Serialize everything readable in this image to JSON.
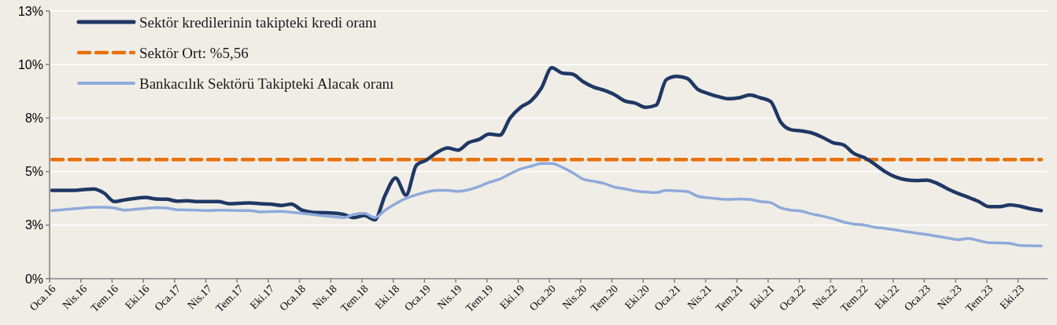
{
  "chart_data": {
    "type": "line",
    "categories": [
      "Oca.16",
      null,
      null,
      "Nis.16",
      null,
      null,
      "Tem.16",
      null,
      null,
      "Eki.16",
      null,
      null,
      "Oca.17",
      null,
      null,
      "Nis.17",
      null,
      null,
      "Tem.17",
      null,
      null,
      "Eki.17",
      null,
      null,
      "Oca.18",
      null,
      null,
      "Nis.18",
      null,
      null,
      "Tem.18",
      null,
      null,
      "Eki.18",
      null,
      null,
      "Oca.19",
      null,
      null,
      "Nis.19",
      null,
      null,
      "Tem.19",
      null,
      null,
      "Eki.19",
      null,
      null,
      "Oca.20",
      null,
      null,
      "Nis.20",
      null,
      null,
      "Tem.20",
      null,
      null,
      "Eki.20",
      null,
      null,
      "Oca.21",
      null,
      null,
      "Nis.21",
      null,
      null,
      "Tem.21",
      null,
      null,
      "Eki.21",
      null,
      null,
      "Oca.22",
      null,
      null,
      "Nis.22",
      null,
      null,
      "Tem.22",
      null,
      null,
      "Eki.22",
      null,
      null,
      "Oca.23",
      null,
      null,
      "Nis.23",
      null,
      null,
      "Tem.23",
      null,
      null,
      "Eki.23",
      null,
      null
    ],
    "series": [
      {
        "name": "Sektör kredilerinin takipteki kredi oranı",
        "color": "#1f3864",
        "values": [
          4.12,
          4.12,
          4.12,
          4.16,
          4.19,
          4.0,
          3.6,
          3.68,
          3.75,
          3.79,
          3.72,
          3.71,
          3.62,
          3.64,
          3.6,
          3.6,
          3.6,
          3.5,
          3.52,
          3.54,
          3.5,
          3.48,
          3.42,
          3.48,
          3.2,
          3.1,
          3.08,
          3.06,
          3.0,
          2.85,
          2.95,
          2.75,
          3.9,
          4.7,
          3.9,
          5.3,
          5.55,
          5.9,
          6.1,
          6.0,
          6.35,
          6.5,
          6.75,
          6.7,
          7.5,
          8.0,
          8.3,
          8.9,
          9.85,
          9.6,
          9.55,
          9.2,
          8.95,
          8.8,
          8.6,
          8.3,
          8.2,
          8.0,
          8.1,
          9.3,
          9.45,
          9.35,
          8.85,
          8.65,
          8.5,
          8.4,
          8.45,
          8.58,
          8.45,
          8.28,
          7.3,
          6.95,
          6.9,
          6.8,
          6.6,
          6.35,
          6.25,
          5.85,
          5.65,
          5.35,
          5.0,
          4.75,
          4.62,
          4.58,
          4.6,
          4.45,
          4.2,
          3.98,
          3.8,
          3.6,
          3.36,
          3.36,
          3.45,
          3.38,
          3.26,
          3.18
        ]
      },
      {
        "name": "Bankacılık Sektörü Takipteki Alacak oranı",
        "color": "#8eaadb",
        "values": [
          3.18,
          3.22,
          3.26,
          3.3,
          3.34,
          3.34,
          3.3,
          3.2,
          3.24,
          3.28,
          3.32,
          3.3,
          3.22,
          3.21,
          3.2,
          3.18,
          3.2,
          3.19,
          3.18,
          3.18,
          3.12,
          3.13,
          3.14,
          3.1,
          3.05,
          3.0,
          2.94,
          2.9,
          2.85,
          3.0,
          3.05,
          2.85,
          3.2,
          3.5,
          3.75,
          3.92,
          4.05,
          4.12,
          4.12,
          4.08,
          4.15,
          4.3,
          4.5,
          4.65,
          4.9,
          5.12,
          5.25,
          5.38,
          5.38,
          5.2,
          4.95,
          4.65,
          4.55,
          4.45,
          4.28,
          4.2,
          4.1,
          4.05,
          4.02,
          4.12,
          4.1,
          4.07,
          3.85,
          3.78,
          3.73,
          3.7,
          3.72,
          3.7,
          3.6,
          3.55,
          3.3,
          3.2,
          3.15,
          3.02,
          2.92,
          2.8,
          2.65,
          2.55,
          2.5,
          2.4,
          2.35,
          2.28,
          2.2,
          2.13,
          2.06,
          1.98,
          1.9,
          1.82,
          1.88,
          1.78,
          1.68,
          1.67,
          1.65,
          1.55,
          1.54,
          1.53
        ]
      }
    ],
    "ref_lines": [
      {
        "axis": "y",
        "value": 5.56,
        "label": "Sektör Ort: %5,56",
        "color": "#e8710a",
        "line_style": "dashed"
      }
    ],
    "ylim": [
      0,
      12.5
    ],
    "yticks": [
      {
        "value": 0,
        "label": "0%"
      },
      {
        "value": 2.5,
        "label": "3%"
      },
      {
        "value": 5,
        "label": "5%"
      },
      {
        "value": 7.5,
        "label": "8%"
      },
      {
        "value": 10,
        "label": "10%"
      },
      {
        "value": 12.5,
        "label": "13%"
      }
    ],
    "grid": "y",
    "legend": "top left",
    "marker": "none",
    "line_style": "solid"
  }
}
